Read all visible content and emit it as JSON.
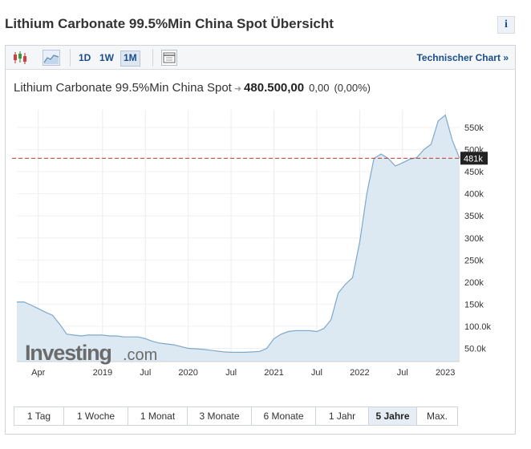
{
  "page": {
    "title": "Lithium Carbonate 99.5%Min China Spot Übersicht",
    "info_label": "i"
  },
  "toolbar": {
    "icons": [
      "candlestick-icon",
      "area-chart-icon",
      "calendar-icon"
    ],
    "periods": [
      "1D",
      "1W",
      "1M"
    ],
    "active_period": "1M",
    "technical_link": "Technischer Chart",
    "technical_link_arrow": "»"
  },
  "quote": {
    "name": "Lithium Carbonate 99.5%Min China Spot",
    "price": "480.500,00",
    "change": "0,00",
    "change_pct": "(0,00%)"
  },
  "watermark": {
    "brand": "Investing",
    "suffix": ".com"
  },
  "colors": {
    "line": "#7ca9cc",
    "fill": "#dce9f3",
    "ref_line": "#c0392b",
    "price_tag": "#222222",
    "accent": "#1a4d8c"
  },
  "chart_data": {
    "type": "area",
    "x_ticks": [
      "Apr",
      "2019",
      "Jul",
      "2020",
      "Jul",
      "2021",
      "Jul",
      "2022",
      "Jul",
      "2023"
    ],
    "x_tick_positions": [
      3,
      12,
      18,
      24,
      30,
      36,
      42,
      48,
      54,
      60
    ],
    "y_ticks": [
      "50.0k",
      "100.0k",
      "150k",
      "200k",
      "250k",
      "300k",
      "350k",
      "400k",
      "450k",
      "500k",
      "550k"
    ],
    "y_tick_values": [
      50000,
      100000,
      150000,
      200000,
      250000,
      300000,
      350000,
      400000,
      450000,
      500000,
      550000
    ],
    "ylim": [
      20000,
      590000
    ],
    "xlim": [
      0,
      62
    ],
    "last_value": 480500,
    "last_label": "481k",
    "points": [
      [
        0,
        155000
      ],
      [
        1,
        155000
      ],
      [
        2,
        148000
      ],
      [
        3,
        140000
      ],
      [
        4,
        132000
      ],
      [
        5,
        125000
      ],
      [
        6,
        105000
      ],
      [
        7,
        82000
      ],
      [
        8,
        80000
      ],
      [
        9,
        78000
      ],
      [
        10,
        80000
      ],
      [
        11,
        80000
      ],
      [
        12,
        80000
      ],
      [
        13,
        78000
      ],
      [
        14,
        78000
      ],
      [
        15,
        76000
      ],
      [
        16,
        76000
      ],
      [
        17,
        76000
      ],
      [
        18,
        72000
      ],
      [
        19,
        66000
      ],
      [
        20,
        62000
      ],
      [
        21,
        60000
      ],
      [
        22,
        58000
      ],
      [
        23,
        54000
      ],
      [
        24,
        50000
      ],
      [
        25,
        49000
      ],
      [
        26,
        48000
      ],
      [
        27,
        46000
      ],
      [
        28,
        44000
      ],
      [
        29,
        42000
      ],
      [
        30,
        41000
      ],
      [
        31,
        41000
      ],
      [
        32,
        41000
      ],
      [
        33,
        42000
      ],
      [
        34,
        43000
      ],
      [
        35,
        50000
      ],
      [
        36,
        72000
      ],
      [
        37,
        82000
      ],
      [
        38,
        88000
      ],
      [
        39,
        90000
      ],
      [
        40,
        90000
      ],
      [
        41,
        90000
      ],
      [
        42,
        88000
      ],
      [
        43,
        95000
      ],
      [
        44,
        115000
      ],
      [
        45,
        175000
      ],
      [
        46,
        195000
      ],
      [
        47,
        210000
      ],
      [
        48,
        290000
      ],
      [
        49,
        400000
      ],
      [
        50,
        480000
      ],
      [
        51,
        490000
      ],
      [
        52,
        480000
      ],
      [
        53,
        463000
      ],
      [
        54,
        470000
      ],
      [
        55,
        478000
      ],
      [
        56,
        482000
      ],
      [
        57,
        500000
      ],
      [
        58,
        512000
      ],
      [
        59,
        565000
      ],
      [
        60,
        578000
      ],
      [
        61,
        520000
      ],
      [
        62,
        480500
      ]
    ]
  },
  "range_buttons": {
    "items": [
      "1 Tag",
      "1 Woche",
      "1 Monat",
      "3 Monate",
      "6 Monate",
      "1 Jahr",
      "5 Jahre",
      "Max."
    ],
    "widths": [
      62,
      80,
      74,
      80,
      80,
      66,
      60,
      50
    ],
    "active": "5 Jahre"
  }
}
